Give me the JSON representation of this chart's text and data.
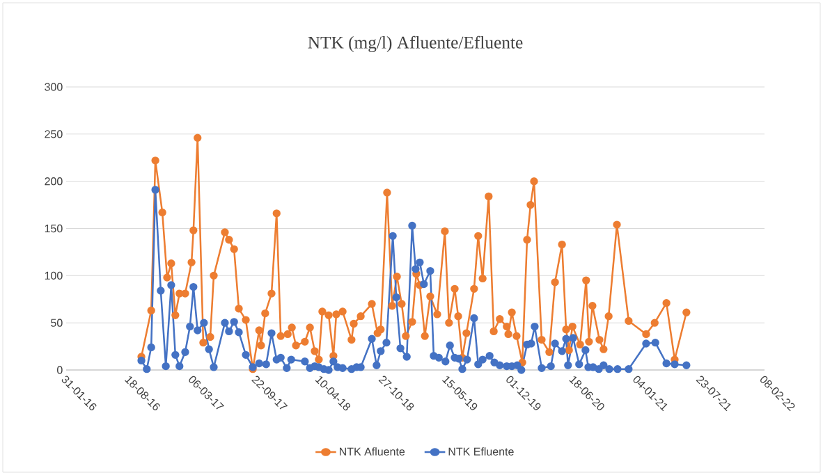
{
  "chart_data": {
    "type": "line",
    "title": "NTK (mg/l) Afluente/Efluente",
    "xlim": [
      "2016-01-31",
      "2022-02-08"
    ],
    "xticks": [
      {
        "value": "2016-01-31",
        "label": "31-01-16"
      },
      {
        "value": "2016-08-18",
        "label": "18-08-16"
      },
      {
        "value": "2017-03-06",
        "label": "06-03-17"
      },
      {
        "value": "2017-09-22",
        "label": "22-09-17"
      },
      {
        "value": "2018-04-10",
        "label": "10-04-18"
      },
      {
        "value": "2018-10-27",
        "label": "27-10-18"
      },
      {
        "value": "2019-05-15",
        "label": "15-05-19"
      },
      {
        "value": "2019-12-01",
        "label": "01-12-19"
      },
      {
        "value": "2020-06-18",
        "label": "18-06-20"
      },
      {
        "value": "2021-01-04",
        "label": "04-01-21"
      },
      {
        "value": "2021-07-23",
        "label": "23-07-21"
      },
      {
        "value": "2022-02-08",
        "label": "08-02-22"
      }
    ],
    "ylim": [
      0,
      300
    ],
    "yticks": [
      0,
      50,
      100,
      150,
      200,
      250,
      300
    ],
    "grid": "y",
    "legend": "bottom",
    "marker": "circle",
    "line_style": "solid",
    "series": [
      {
        "name": "NTK Afluente",
        "color": "#ed7d31",
        "x": [
          "2016-09-24",
          "2016-10-25",
          "2016-11-07",
          "2016-11-29",
          "2016-12-14",
          "2016-12-27",
          "2017-01-09",
          "2017-01-22",
          "2017-02-09",
          "2017-03-01",
          "2017-03-07",
          "2017-03-20",
          "2017-04-07",
          "2017-04-29",
          "2017-05-10",
          "2017-06-14",
          "2017-06-27",
          "2017-07-13",
          "2017-07-28",
          "2017-08-19",
          "2017-09-10",
          "2017-09-30",
          "2017-10-06",
          "2017-10-19",
          "2017-11-08",
          "2017-11-24",
          "2017-12-07",
          "2017-12-29",
          "2018-01-11",
          "2018-01-24",
          "2018-02-21",
          "2018-03-09",
          "2018-03-24",
          "2018-04-06",
          "2018-04-17",
          "2018-05-07",
          "2018-05-22",
          "2018-05-31",
          "2018-06-20",
          "2018-07-18",
          "2018-07-25",
          "2018-08-16",
          "2018-09-20",
          "2018-10-08",
          "2018-10-18",
          "2018-11-07",
          "2018-11-23",
          "2018-12-08",
          "2018-12-23",
          "2019-01-05",
          "2019-01-25",
          "2019-02-07",
          "2019-02-18",
          "2019-03-06",
          "2019-03-23",
          "2019-04-14",
          "2019-05-08",
          "2019-05-21",
          "2019-06-08",
          "2019-06-19",
          "2019-07-02",
          "2019-07-15",
          "2019-08-08",
          "2019-08-21",
          "2019-09-04",
          "2019-09-23",
          "2019-10-09",
          "2019-10-28",
          "2019-11-19",
          "2019-11-24",
          "2019-12-05",
          "2019-12-20",
          "2020-01-07",
          "2020-01-22",
          "2020-02-02",
          "2020-02-13",
          "2020-03-08",
          "2020-04-01",
          "2020-04-19",
          "2020-05-11",
          "2020-05-24",
          "2020-06-02",
          "2020-06-13",
          "2020-07-07",
          "2020-07-26",
          "2020-08-04",
          "2020-08-15",
          "2020-09-06",
          "2020-09-19",
          "2020-10-05",
          "2020-10-31",
          "2020-12-07",
          "2021-01-31",
          "2021-02-27",
          "2021-04-05",
          "2021-05-01",
          "2021-06-07"
        ],
        "values": [
          14,
          63,
          222,
          167,
          98,
          113,
          58,
          81,
          81,
          114,
          148,
          246,
          29,
          35,
          100,
          146,
          138,
          128,
          65,
          53,
          1,
          42,
          26,
          60,
          81,
          166,
          36,
          38,
          45,
          26,
          30,
          45,
          20,
          11,
          62,
          58,
          15,
          59,
          62,
          32,
          49,
          57,
          70,
          39,
          43,
          188,
          68,
          99,
          70,
          36,
          51,
          102,
          90,
          36,
          78,
          59,
          147,
          50,
          86,
          57,
          13,
          39,
          86,
          142,
          97,
          184,
          41,
          54,
          46,
          38,
          61,
          36,
          8,
          138,
          175,
          200,
          32,
          19,
          93,
          133,
          43,
          21,
          46,
          27,
          95,
          30,
          68,
          32,
          22,
          57,
          154,
          52,
          38,
          50,
          71,
          11,
          61
        ]
      },
      {
        "name": "NTK Efluente",
        "color": "#4472c4",
        "x": [
          "2016-09-24",
          "2016-10-11",
          "2016-10-25",
          "2016-11-07",
          "2016-11-24",
          "2016-12-10",
          "2016-12-27",
          "2017-01-09",
          "2017-01-22",
          "2017-02-09",
          "2017-02-24",
          "2017-03-07",
          "2017-03-20",
          "2017-04-09",
          "2017-04-25",
          "2017-05-10",
          "2017-06-14",
          "2017-06-27",
          "2017-07-13",
          "2017-07-28",
          "2017-08-19",
          "2017-09-10",
          "2017-09-30",
          "2017-10-22",
          "2017-11-08",
          "2017-11-24",
          "2017-12-07",
          "2017-12-26",
          "2018-01-09",
          "2018-02-21",
          "2018-03-09",
          "2018-03-24",
          "2018-04-06",
          "2018-04-22",
          "2018-05-07",
          "2018-05-22",
          "2018-06-04",
          "2018-06-20",
          "2018-07-18",
          "2018-08-03",
          "2018-08-16",
          "2018-09-20",
          "2018-10-05",
          "2018-10-18",
          "2018-11-05",
          "2018-11-25",
          "2018-12-06",
          "2018-12-19",
          "2019-01-08",
          "2019-01-25",
          "2019-02-05",
          "2019-02-18",
          "2019-03-03",
          "2019-03-23",
          "2019-04-03",
          "2019-04-19",
          "2019-05-10",
          "2019-05-24",
          "2019-06-08",
          "2019-06-21",
          "2019-07-02",
          "2019-07-17",
          "2019-08-08",
          "2019-08-21",
          "2019-09-04",
          "2019-09-26",
          "2019-10-11",
          "2019-10-28",
          "2019-11-19",
          "2019-12-05",
          "2019-12-22",
          "2020-01-04",
          "2020-01-22",
          "2020-02-04",
          "2020-02-15",
          "2020-03-08",
          "2020-04-06",
          "2020-04-19",
          "2020-05-11",
          "2020-05-24",
          "2020-05-30",
          "2020-06-15",
          "2020-07-04",
          "2020-07-24",
          "2020-08-02",
          "2020-08-17",
          "2020-09-04",
          "2020-09-19",
          "2020-10-07",
          "2020-11-02",
          "2020-12-07",
          "2021-01-31",
          "2021-03-01",
          "2021-04-05",
          "2021-05-01",
          "2021-06-07"
        ],
        "values": [
          10,
          1,
          24,
          191,
          84,
          4,
          90,
          16,
          4,
          19,
          46,
          88,
          42,
          50,
          22,
          3,
          50,
          41,
          51,
          40,
          16,
          3,
          7,
          6,
          39,
          11,
          13,
          2,
          11,
          9,
          2,
          4,
          3,
          1,
          0,
          9,
          3,
          2,
          1,
          3,
          3,
          33,
          5,
          20,
          29,
          142,
          77,
          23,
          14,
          153,
          107,
          114,
          91,
          105,
          15,
          13,
          9,
          26,
          13,
          12,
          1,
          11,
          55,
          6,
          11,
          15,
          8,
          5,
          4,
          4,
          5,
          0,
          27,
          28,
          46,
          2,
          4,
          28,
          20,
          33,
          5,
          34,
          6,
          21,
          3,
          3,
          1,
          5,
          1,
          1,
          1,
          28,
          29,
          7,
          6,
          5
        ]
      }
    ]
  }
}
